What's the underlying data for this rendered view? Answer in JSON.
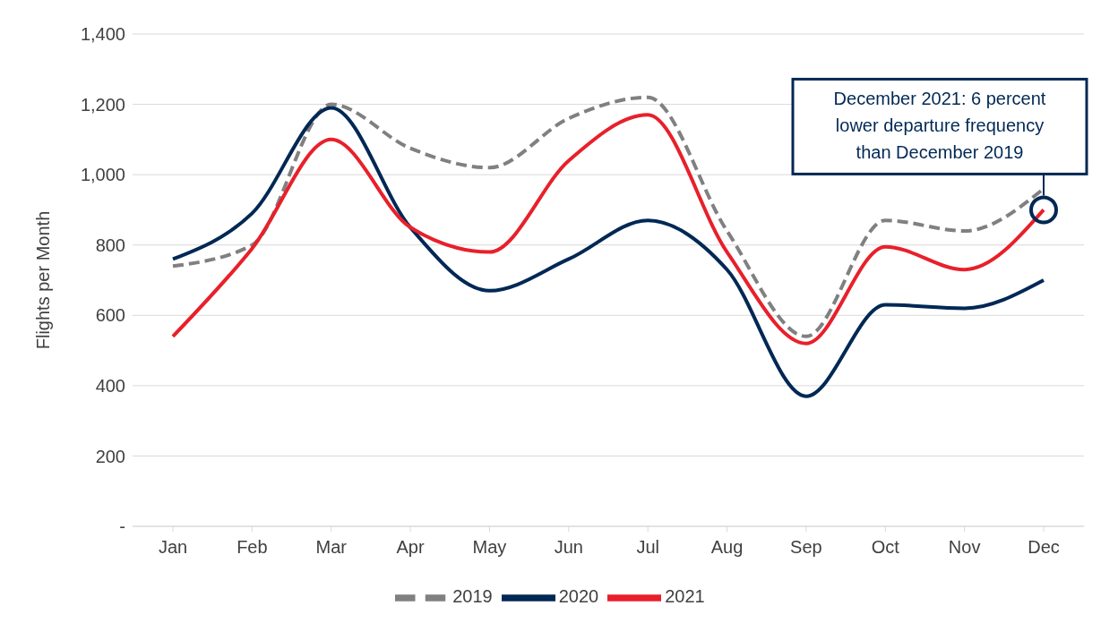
{
  "chart_data": {
    "type": "line",
    "ylabel": "Flights per Month",
    "categories": [
      "Jan",
      "Feb",
      "Mar",
      "Apr",
      "May",
      "Jun",
      "Jul",
      "Aug",
      "Sep",
      "Oct",
      "Nov",
      "Dec"
    ],
    "series": [
      {
        "name": "2019",
        "color": "#808080",
        "line_style": "dashed",
        "values": [
          740,
          800,
          1200,
          1075,
          1020,
          1160,
          1220,
          840,
          540,
          870,
          840,
          960
        ]
      },
      {
        "name": "2020",
        "color": "#002855",
        "line_style": "solid",
        "values": [
          760,
          890,
          1190,
          850,
          670,
          760,
          870,
          730,
          370,
          630,
          620,
          700
        ]
      },
      {
        "name": "2021",
        "color": "#e8202a",
        "line_style": "solid",
        "values": [
          540,
          790,
          1100,
          850,
          780,
          1040,
          1170,
          780,
          520,
          795,
          730,
          900
        ]
      }
    ],
    "ylim": [
      0,
      1400
    ],
    "yticks": [
      {
        "value": 0,
        "label": "-"
      },
      200,
      400,
      600,
      800,
      {
        "value": 1000,
        "label": "1,000"
      },
      {
        "value": 1200,
        "label": "1,200"
      },
      {
        "value": 1400,
        "label": "1,400"
      }
    ],
    "grid": "y",
    "legend": "bottom",
    "marker": "none",
    "annotations": [
      {
        "text": "December 2021: 6 percent lower departure frequency than December 2019",
        "x": "Dec",
        "y": 900
      }
    ]
  }
}
